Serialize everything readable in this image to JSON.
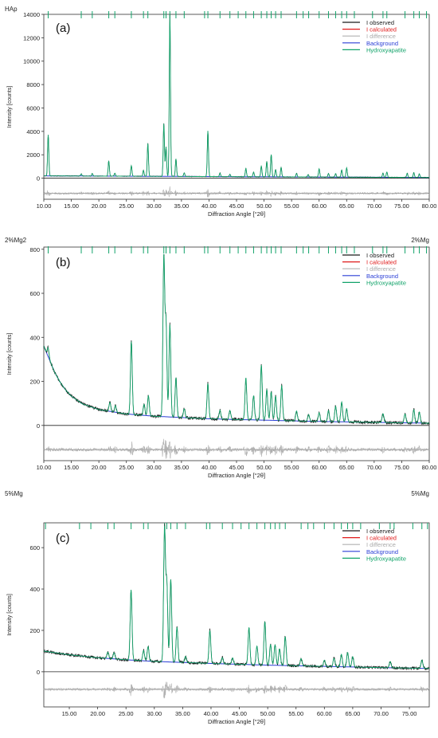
{
  "colors": {
    "observed": "#1a1a1a",
    "calculated": "#e01a1a",
    "difference": "#b0b0b0",
    "background": "#2b3fd6",
    "phase": "#12a36a"
  },
  "chart_data": [
    {
      "type": "line",
      "panel_label": "(a)",
      "title_left": "HAp",
      "title_right": "",
      "ylabel": "Intensity [counts]",
      "xlabel": "Diffraction Angle [°2θ]",
      "xlim": [
        10,
        80
      ],
      "ylim": [
        -1800,
        14000
      ],
      "x_ticks": [
        "10.00",
        "15.00",
        "20.00",
        "25.00",
        "30.00",
        "35.00",
        "40.00",
        "45.00",
        "50.00",
        "55.00",
        "60.00",
        "65.00",
        "70.00",
        "75.00",
        "80.00"
      ],
      "y_ticks": [
        "0",
        "2000",
        "4000",
        "6000",
        "8000",
        "10000",
        "12000",
        "14000"
      ],
      "legend": [
        "I observed",
        "I calculated",
        "I difference",
        "Background",
        "Hydroxyapatite"
      ],
      "legend_position": "top-right",
      "background_curve": [
        [
          10,
          200
        ],
        [
          80,
          60
        ]
      ],
      "difference_offset": -1300,
      "peaks": [
        {
          "x": 10.8,
          "y": 3500
        },
        {
          "x": 16.8,
          "y": 180
        },
        {
          "x": 18.8,
          "y": 220
        },
        {
          "x": 21.8,
          "y": 1300
        },
        {
          "x": 22.9,
          "y": 250
        },
        {
          "x": 25.9,
          "y": 900
        },
        {
          "x": 28.1,
          "y": 500
        },
        {
          "x": 28.9,
          "y": 2800
        },
        {
          "x": 31.8,
          "y": 4500
        },
        {
          "x": 32.2,
          "y": 2500
        },
        {
          "x": 32.9,
          "y": 13800
        },
        {
          "x": 34.0,
          "y": 1500
        },
        {
          "x": 35.5,
          "y": 300
        },
        {
          "x": 39.8,
          "y": 3900
        },
        {
          "x": 42.0,
          "y": 300
        },
        {
          "x": 43.8,
          "y": 200
        },
        {
          "x": 46.7,
          "y": 700
        },
        {
          "x": 48.1,
          "y": 400
        },
        {
          "x": 49.5,
          "y": 900
        },
        {
          "x": 50.5,
          "y": 1300
        },
        {
          "x": 51.3,
          "y": 1900
        },
        {
          "x": 52.1,
          "y": 600
        },
        {
          "x": 53.1,
          "y": 800
        },
        {
          "x": 55.9,
          "y": 300
        },
        {
          "x": 58.0,
          "y": 200
        },
        {
          "x": 60.0,
          "y": 700
        },
        {
          "x": 61.7,
          "y": 300
        },
        {
          "x": 63.0,
          "y": 300
        },
        {
          "x": 64.1,
          "y": 600
        },
        {
          "x": 65.0,
          "y": 800
        },
        {
          "x": 71.6,
          "y": 350
        },
        {
          "x": 72.3,
          "y": 450
        },
        {
          "x": 76.0,
          "y": 350
        },
        {
          "x": 77.2,
          "y": 400
        },
        {
          "x": 78.2,
          "y": 300
        }
      ]
    },
    {
      "type": "line",
      "panel_label": "(b)",
      "title_left": "2%Mg2",
      "title_right": "2%Mg",
      "ylabel": "Intensity [counts]",
      "xlabel": "Diffraction Angle [°2θ]",
      "xlim": [
        10,
        80
      ],
      "ylim": [
        -160,
        810
      ],
      "x_ticks": [
        "10.00",
        "15.00",
        "20.00",
        "25.00",
        "30.00",
        "35.00",
        "40.00",
        "45.00",
        "50.00",
        "55.00",
        "60.00",
        "65.00",
        "70.00",
        "75.00",
        "80.00"
      ],
      "y_ticks": [
        "0",
        "200",
        "400",
        "600",
        "800"
      ],
      "legend": [
        "I observed",
        "I calculated",
        "I difference",
        "Background",
        "Hydroxyapatite"
      ],
      "legend_position": "top-right",
      "background_curve": [
        [
          10,
          360
        ],
        [
          11,
          300
        ],
        [
          12,
          240
        ],
        [
          13,
          195
        ],
        [
          14,
          160
        ],
        [
          15,
          133
        ],
        [
          17,
          98
        ],
        [
          20,
          72
        ],
        [
          25,
          52
        ],
        [
          30,
          42
        ],
        [
          40,
          30
        ],
        [
          50,
          24
        ],
        [
          60,
          18
        ],
        [
          70,
          14
        ],
        [
          80,
          10
        ]
      ],
      "difference_offset": -110,
      "peaks": [
        {
          "x": 10.8,
          "y": 40
        },
        {
          "x": 22.0,
          "y": 40
        },
        {
          "x": 23.0,
          "y": 30
        },
        {
          "x": 25.9,
          "y": 330
        },
        {
          "x": 28.2,
          "y": 50
        },
        {
          "x": 29.0,
          "y": 90
        },
        {
          "x": 31.8,
          "y": 720
        },
        {
          "x": 32.2,
          "y": 420
        },
        {
          "x": 32.9,
          "y": 420
        },
        {
          "x": 34.0,
          "y": 180
        },
        {
          "x": 35.5,
          "y": 40
        },
        {
          "x": 39.8,
          "y": 160
        },
        {
          "x": 42.0,
          "y": 40
        },
        {
          "x": 43.8,
          "y": 40
        },
        {
          "x": 46.7,
          "y": 190
        },
        {
          "x": 48.1,
          "y": 110
        },
        {
          "x": 49.5,
          "y": 250
        },
        {
          "x": 50.5,
          "y": 140
        },
        {
          "x": 51.3,
          "y": 130
        },
        {
          "x": 52.1,
          "y": 110
        },
        {
          "x": 53.2,
          "y": 160
        },
        {
          "x": 55.9,
          "y": 45
        },
        {
          "x": 58.1,
          "y": 30
        },
        {
          "x": 60.0,
          "y": 40
        },
        {
          "x": 61.7,
          "y": 50
        },
        {
          "x": 63.0,
          "y": 70
        },
        {
          "x": 64.1,
          "y": 90
        },
        {
          "x": 65.0,
          "y": 60
        },
        {
          "x": 71.6,
          "y": 40
        },
        {
          "x": 75.6,
          "y": 40
        },
        {
          "x": 77.2,
          "y": 60
        },
        {
          "x": 78.2,
          "y": 50
        }
      ]
    },
    {
      "type": "line",
      "panel_label": "(c)",
      "title_left": "5%Mg",
      "title_right": "5%Mg",
      "ylabel": "Intensity [counts]",
      "xlabel": "Diffraction Angle [°2θ]",
      "xlim": [
        10.5,
        78.5
      ],
      "ylim": [
        -170,
        720
      ],
      "x_ticks": [
        "15.00",
        "20.00",
        "25.00",
        "30.00",
        "35.00",
        "40.00",
        "45.00",
        "50.00",
        "55.00",
        "60.00",
        "65.00",
        "70.00",
        "75.00"
      ],
      "y_ticks": [
        "0",
        "200",
        "400",
        "600"
      ],
      "legend": [
        "I observed",
        "I calculated",
        "I difference",
        "Background",
        "Hydroxyapatite"
      ],
      "legend_position": "top-right",
      "background_curve": [
        [
          10.5,
          100
        ],
        [
          15,
          82
        ],
        [
          20,
          68
        ],
        [
          25,
          58
        ],
        [
          30,
          50
        ],
        [
          40,
          40
        ],
        [
          50,
          32
        ],
        [
          60,
          26
        ],
        [
          70,
          20
        ],
        [
          78.5,
          16
        ]
      ],
      "difference_offset": -85,
      "peaks": [
        {
          "x": 21.8,
          "y": 30
        },
        {
          "x": 22.9,
          "y": 30
        },
        {
          "x": 25.9,
          "y": 340
        },
        {
          "x": 28.1,
          "y": 50
        },
        {
          "x": 28.9,
          "y": 70
        },
        {
          "x": 31.8,
          "y": 640
        },
        {
          "x": 32.2,
          "y": 380
        },
        {
          "x": 32.9,
          "y": 400
        },
        {
          "x": 34.0,
          "y": 170
        },
        {
          "x": 35.5,
          "y": 30
        },
        {
          "x": 39.8,
          "y": 160
        },
        {
          "x": 42.0,
          "y": 30
        },
        {
          "x": 43.8,
          "y": 30
        },
        {
          "x": 46.7,
          "y": 180
        },
        {
          "x": 48.1,
          "y": 90
        },
        {
          "x": 49.5,
          "y": 210
        },
        {
          "x": 50.5,
          "y": 100
        },
        {
          "x": 51.3,
          "y": 100
        },
        {
          "x": 52.1,
          "y": 80
        },
        {
          "x": 53.1,
          "y": 140
        },
        {
          "x": 55.9,
          "y": 35
        },
        {
          "x": 60.0,
          "y": 30
        },
        {
          "x": 61.7,
          "y": 40
        },
        {
          "x": 63.0,
          "y": 60
        },
        {
          "x": 64.1,
          "y": 70
        },
        {
          "x": 65.0,
          "y": 50
        },
        {
          "x": 71.6,
          "y": 30
        },
        {
          "x": 77.2,
          "y": 40
        }
      ]
    }
  ],
  "reflection_ticks": [
    10.8,
    16.8,
    18.8,
    21.8,
    22.9,
    25.9,
    28.1,
    28.9,
    31.8,
    32.2,
    32.9,
    34.0,
    35.5,
    39.2,
    39.8,
    42.0,
    43.8,
    45.3,
    46.7,
    48.1,
    49.5,
    50.5,
    51.3,
    52.1,
    53.1,
    55.9,
    57.1,
    58.1,
    60.0,
    61.7,
    63.0,
    64.1,
    65.0,
    66.4,
    69.7,
    71.6,
    72.3,
    75.6,
    77.2,
    78.2,
    79.5
  ]
}
